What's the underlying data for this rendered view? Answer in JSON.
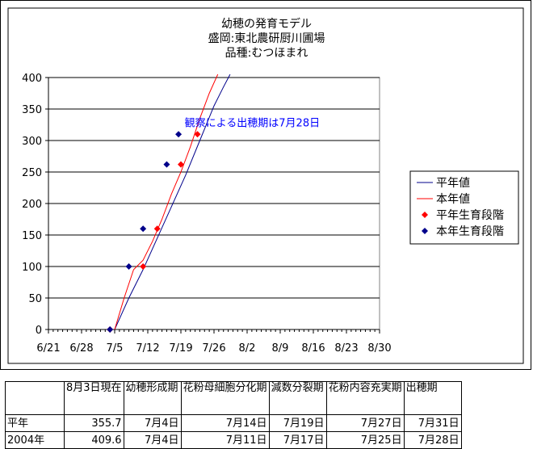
{
  "chart_data": {
    "type": "line",
    "title_lines": [
      "幼穂の発育モデル",
      "盛岡:東北農研厨川圃場",
      "品種:むつほまれ"
    ],
    "x_ticks": [
      "6/21",
      "6/28",
      "7/5",
      "7/12",
      "7/19",
      "7/26",
      "8/2",
      "8/9",
      "8/16",
      "8/23",
      "8/30"
    ],
    "x_range_days": [
      0,
      70
    ],
    "ylim": [
      0,
      400
    ],
    "y_ticks": [
      0,
      50,
      100,
      150,
      200,
      250,
      300,
      350,
      400
    ],
    "grid": "horizontal",
    "legend_placement": "right",
    "series": [
      {
        "name": "平年値",
        "kind": "line",
        "color": "#00008b",
        "points": [
          [
            14,
            0
          ],
          [
            17,
            50
          ],
          [
            20,
            95
          ],
          [
            23,
            145
          ],
          [
            26,
            195
          ],
          [
            29,
            245
          ],
          [
            32,
            300
          ],
          [
            35,
            355
          ],
          [
            37,
            385
          ],
          [
            38.4,
            405
          ]
        ]
      },
      {
        "name": "本年値",
        "kind": "line",
        "color": "#ff0000",
        "points": [
          [
            14,
            0
          ],
          [
            16,
            50
          ],
          [
            18,
            95
          ],
          [
            20,
            110
          ],
          [
            22,
            140
          ],
          [
            24,
            175
          ],
          [
            26,
            215
          ],
          [
            28,
            250
          ],
          [
            30,
            290
          ],
          [
            32,
            335
          ],
          [
            34,
            375
          ],
          [
            35.8,
            405
          ]
        ]
      },
      {
        "name": "平年生育段階",
        "kind": "marker",
        "color": "#ff0000",
        "marker": "diamond",
        "points": [
          [
            13,
            0
          ],
          [
            20,
            100
          ],
          [
            23,
            160
          ],
          [
            28,
            262
          ],
          [
            31.5,
            310
          ]
        ]
      },
      {
        "name": "本年生育段階",
        "kind": "marker",
        "color": "#00008b",
        "marker": "diamond",
        "points": [
          [
            13,
            0
          ],
          [
            17,
            100
          ],
          [
            20,
            160
          ],
          [
            25,
            262
          ],
          [
            27.5,
            310
          ]
        ]
      }
    ],
    "annotation": {
      "text": "観察による出穂期は7月28日",
      "x": 28.8,
      "y": 320,
      "color": "#0000ff"
    }
  },
  "table": {
    "headers": [
      "",
      "8月3日現在",
      "幼穂形成期",
      "花粉母細胞分化期",
      "減数分裂期",
      "花粉内容充実期",
      "出穂期"
    ],
    "rows": [
      [
        "平年",
        "355.7",
        "7月4日",
        "7月14日",
        "7月19日",
        "7月27日",
        "7月31日"
      ],
      [
        "2004年",
        "409.6",
        "7月4日",
        "7月11日",
        "7月17日",
        "7月25日",
        "7月28日"
      ]
    ]
  }
}
